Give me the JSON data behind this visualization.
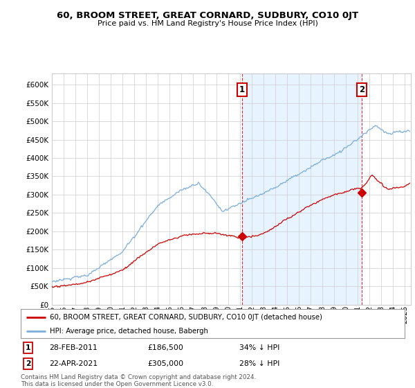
{
  "title": "60, BROOM STREET, GREAT CORNARD, SUDBURY, CO10 0JT",
  "subtitle": "Price paid vs. HM Land Registry's House Price Index (HPI)",
  "ylim": [
    0,
    620000
  ],
  "xlim_start": 1995.0,
  "xlim_end": 2025.5,
  "red_line_color": "#cc0000",
  "blue_line_color": "#7aaddb",
  "shade_color": "#ddeeff",
  "marker1_date": 2011.16,
  "marker1_price": 186500,
  "marker2_date": 2021.31,
  "marker2_price": 305000,
  "legend_red_label": "60, BROOM STREET, GREAT CORNARD, SUDBURY, CO10 0JT (detached house)",
  "legend_blue_label": "HPI: Average price, detached house, Babergh",
  "note1_date": "28-FEB-2011",
  "note1_price": "£186,500",
  "note1_text": "34% ↓ HPI",
  "note2_date": "22-APR-2021",
  "note2_price": "£305,000",
  "note2_text": "28% ↓ HPI",
  "footer": "Contains HM Land Registry data © Crown copyright and database right 2024.\nThis data is licensed under the Open Government Licence v3.0.",
  "background_color": "#ffffff",
  "grid_color": "#cccccc"
}
